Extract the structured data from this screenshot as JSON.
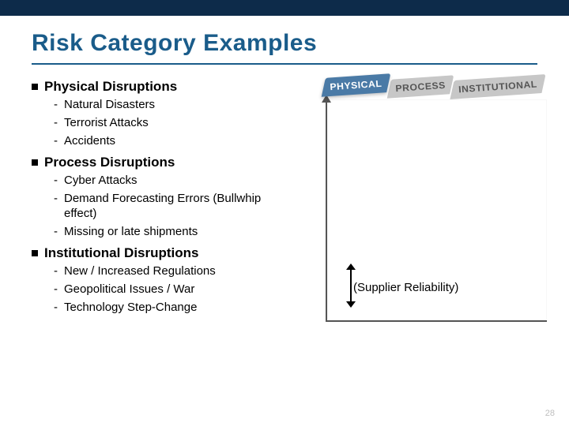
{
  "slide": {
    "title": "Risk Category Examples",
    "page_number": "28",
    "colors": {
      "topbar": "#0d2b4a",
      "title": "#1a5c8a",
      "tab_active_bg": "#4a7aa6",
      "tab_inactive_bg": "#c7c7c7",
      "axis": "#555555",
      "pagenum": "#bfbfbf"
    }
  },
  "sections": [
    {
      "heading": "Physical Disruptions",
      "items": [
        "Natural Disasters",
        "Terrorist Attacks",
        "Accidents"
      ]
    },
    {
      "heading": "Process Disruptions",
      "items": [
        "Cyber Attacks",
        "Demand Forecasting Errors (Bullwhip effect)",
        "Missing or late shipments"
      ]
    },
    {
      "heading": "Institutional Disruptions",
      "items": [
        "New / Increased Regulations",
        "Geopolitical Issues / War",
        "Technology Step-Change"
      ]
    }
  ],
  "figure": {
    "tabs": [
      "PHYSICAL",
      "PROCESS",
      "INSTITUTIONAL"
    ],
    "active_tab_index": 0,
    "caption": "(Supplier Reliability)"
  }
}
